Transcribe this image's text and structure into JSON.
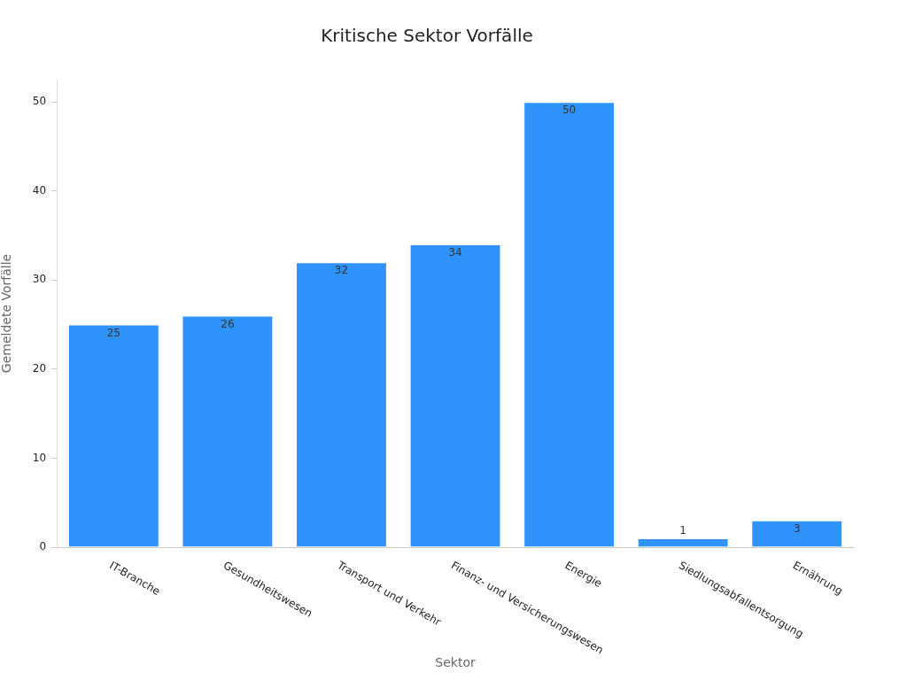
{
  "chart_data": {
    "type": "bar",
    "title": "Kritische Sektor Vorfälle",
    "xlabel": "Sektor",
    "ylabel": "Gemeldete Vorfälle",
    "categories": [
      "IT-Branche",
      "Gesundheitswesen",
      "Transport und Verkehr",
      "Finanz- und Versicherungswesen",
      "Energie",
      "Siedlungsabfallentsorgung",
      "Ernährung"
    ],
    "values": [
      25,
      26,
      32,
      34,
      50,
      1,
      3
    ],
    "color": "#2e93fa",
    "ylim": [
      0,
      52.5
    ],
    "yticks": [
      0,
      10,
      20,
      30,
      40,
      50
    ],
    "grid": false,
    "legend": false,
    "data_labels": true
  }
}
